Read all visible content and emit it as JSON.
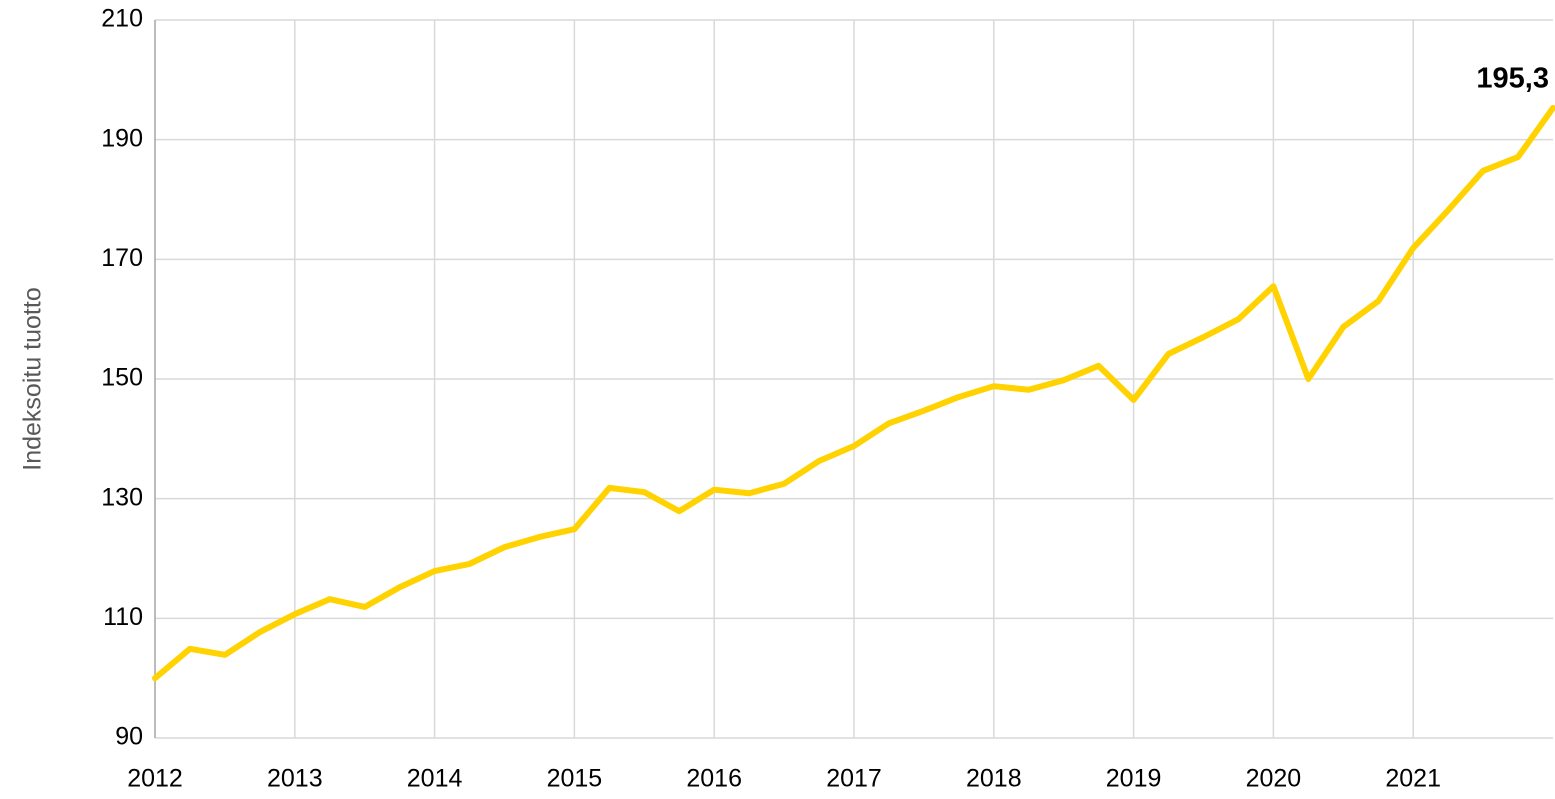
{
  "chart_data": {
    "type": "line",
    "y_label": "Indeksoitu tuotto",
    "annotation": "195,3",
    "x": [
      2012,
      2012.25,
      2012.5,
      2012.75,
      2013,
      2013.25,
      2013.5,
      2013.75,
      2014,
      2014.25,
      2014.5,
      2014.75,
      2015,
      2015.25,
      2015.5,
      2015.75,
      2016,
      2016.25,
      2016.5,
      2016.75,
      2017,
      2017.25,
      2017.5,
      2017.75,
      2018,
      2018.25,
      2018.5,
      2018.75,
      2019,
      2019.25,
      2019.5,
      2019.75,
      2020,
      2020.25,
      2020.5,
      2020.75,
      2021,
      2021.25,
      2021.5,
      2021.75,
      2022
    ],
    "series": [
      {
        "color": "#ffd200",
        "values": [
          100,
          104.9,
          103.9,
          107.7,
          110.7,
          113.2,
          111.9,
          115.2,
          117.9,
          119.1,
          121.9,
          123.6,
          124.9,
          131.8,
          131.1,
          127.9,
          131.5,
          130.9,
          132.5,
          136.3,
          138.8,
          142.6,
          144.7,
          147.0,
          148.8,
          148.2,
          149.8,
          152.2,
          146.5,
          154.2,
          157.0,
          160.0,
          165.5,
          150.0,
          158.7,
          163.0,
          171.9,
          178.2,
          184.8,
          187.1,
          195.3
        ]
      }
    ],
    "xlim": [
      2012,
      2022
    ],
    "xticks": [
      2012,
      2013,
      2014,
      2015,
      2016,
      2017,
      2018,
      2019,
      2020,
      2021
    ],
    "ylim": [
      90,
      210
    ],
    "yticks": [
      90,
      110,
      130,
      150,
      170,
      190,
      210
    ],
    "grid": true
  }
}
